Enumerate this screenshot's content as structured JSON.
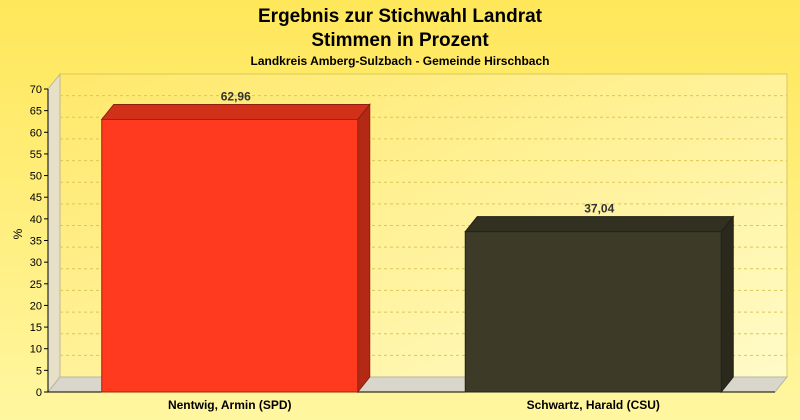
{
  "chart_data": {
    "type": "bar",
    "title": "Ergebnis zur Stichwahl Landrat",
    "title2": "Stimmen in Prozent",
    "subtitle": "Landkreis Amberg-Sulzbach - Gemeinde Hirschbach",
    "ylabel": "%",
    "categories": [
      "Nentwig, Armin (SPD)",
      "Schwartz, Harald (CSU)"
    ],
    "values": [
      62.96,
      37.04
    ],
    "value_labels": [
      "62,96",
      "37,04"
    ],
    "colors": [
      "#ff3a1f",
      "#3d3a28"
    ],
    "ylim": [
      0,
      70
    ],
    "yticks": [
      "0",
      "5",
      "10",
      "15",
      "20",
      "25",
      "30",
      "35",
      "40",
      "45",
      "50",
      "55",
      "60",
      "65",
      "70"
    ],
    "grid": true
  }
}
